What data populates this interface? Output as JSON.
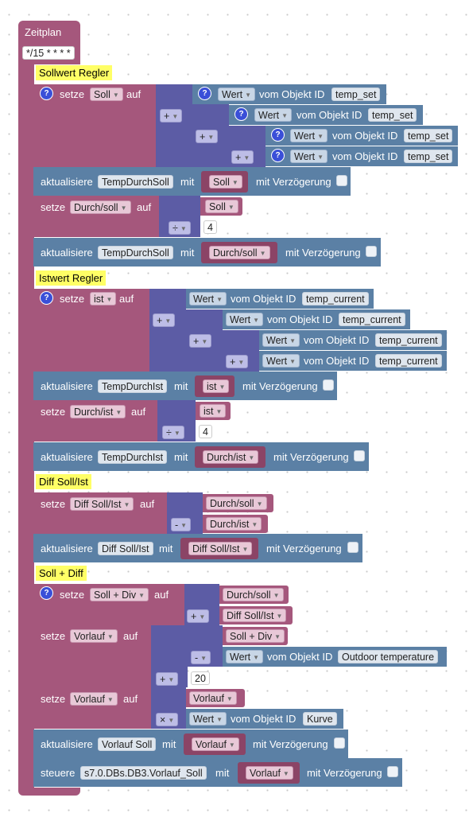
{
  "zeitplan": {
    "title": "Zeitplan",
    "cron": "*/15 * * * *"
  },
  "comments": {
    "c1": "Sollwert Regler",
    "c2": "Istwert Regler",
    "c3": "Diff Soll/Ist",
    "c4": "Soll + Diff"
  },
  "kw": {
    "setze": "setze",
    "auf": "auf",
    "aktualisiere": "aktualisiere",
    "mit": "mit",
    "mit_verz": "mit Verzögerung",
    "vom_objekt": "vom Objekt ID",
    "steuere": "steuere",
    "help": "?"
  },
  "vars": {
    "soll": "Soll",
    "durch_soll": "Durch/soll",
    "ist": "ist",
    "durch_ist": "Durch/ist",
    "diff": "Diff Soll/Ist",
    "soll_div": "Soll + Div",
    "vorlauf": "Vorlauf"
  },
  "ops": {
    "plus": "+",
    "div": "÷",
    "minus": "-",
    "mul": "×"
  },
  "wert": "Wert",
  "numbers": {
    "four": "4",
    "twenty": "20"
  },
  "objects": {
    "temp_set": "temp_set",
    "temp_current": "temp_current",
    "outdoor": "Outdoor temperature",
    "kurve": "Kurve"
  },
  "states": {
    "temp_durch_soll": "TempDurchSoll",
    "temp_durch_ist": "TempDurchIst",
    "diff": "Diff Soll/Ist",
    "vorlauf_soll": "Vorlauf Soll",
    "s7": "s7.0.DBs.DB3.Vorlauf_Soll"
  },
  "colors": {
    "event_block": "#a5577c",
    "action_block": "#5b80a5",
    "math_block": "#5c5ca5",
    "comment": "#ffff66",
    "help_icon": "#3a4fd8"
  }
}
